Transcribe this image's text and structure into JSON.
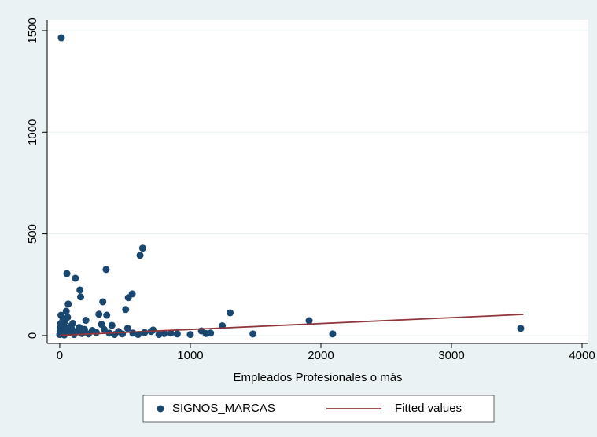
{
  "chart_data": {
    "type": "scatter",
    "xlabel": "Empleados Profesionales o más",
    "xlim": [
      -96,
      4048
    ],
    "xticks": [
      0,
      1000,
      2000,
      3000,
      4000
    ],
    "ylim": [
      -39,
      1554
    ],
    "yticks": [
      0,
      500,
      1000,
      1500
    ],
    "grid": true,
    "legend": "bottom",
    "series": [
      {
        "name": "SIGNOS_MARCAS",
        "type": "scatter",
        "color": "#1a476f",
        "x": [
          0,
          2,
          5,
          8,
          10,
          15,
          20,
          25,
          30,
          35,
          40,
          45,
          50,
          60,
          70,
          80,
          90,
          100,
          110,
          130,
          150,
          170,
          190,
          200,
          220,
          250,
          280,
          300,
          320,
          340,
          360,
          380,
          400,
          420,
          450,
          480,
          520,
          560,
          600,
          650,
          700,
          760,
          800,
          850,
          900,
          1000,
          1120,
          12,
          55,
          120,
          355,
          615,
          635,
          555,
          525,
          330,
          155,
          160,
          65,
          505,
          1305,
          1910,
          1245,
          3530,
          1480,
          2090,
          1085,
          1155,
          715
        ],
        "values": [
          5,
          20,
          40,
          60,
          100,
          30,
          10,
          80,
          50,
          3,
          70,
          25,
          120,
          90,
          15,
          45,
          35,
          60,
          5,
          20,
          40,
          10,
          30,
          75,
          8,
          25,
          15,
          105,
          55,
          30,
          100,
          12,
          50,
          5,
          20,
          8,
          35,
          12,
          5,
          15,
          20,
          5,
          10,
          12,
          8,
          5,
          10,
          1465,
          305,
          282,
          325,
          395,
          430,
          205,
          186,
          166,
          224,
          190,
          155,
          128,
          112,
          73,
          48,
          35,
          8,
          8,
          23,
          12,
          27
        ]
      },
      {
        "name": "Fitted values",
        "type": "line",
        "color": "#90353b",
        "x": [
          0,
          3550
        ],
        "values": [
          1,
          104
        ]
      }
    ]
  }
}
